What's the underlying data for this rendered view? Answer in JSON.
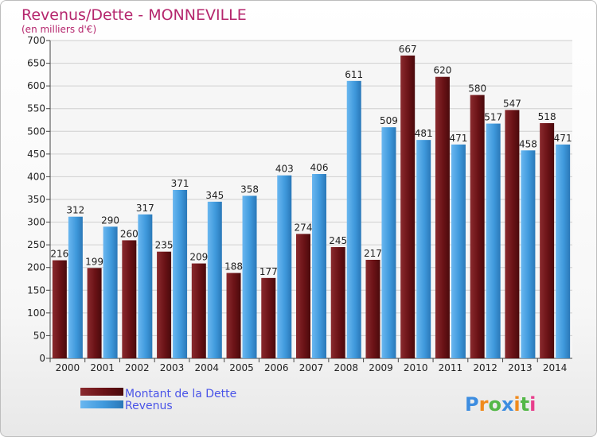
{
  "chart_data": {
    "type": "bar",
    "title": "Revenus/Dette - MONNEVILLE",
    "subtitle": "(en milliers d'€)",
    "categories": [
      "2000",
      "2001",
      "2002",
      "2003",
      "2004",
      "2005",
      "2006",
      "2007",
      "2008",
      "2009",
      "2010",
      "2011",
      "2012",
      "2013",
      "2014"
    ],
    "series": [
      {
        "name": "Montant de la Dette",
        "color": "#7a1a1e",
        "values": [
          216,
          199,
          260,
          235,
          209,
          188,
          177,
          274,
          245,
          217,
          667,
          620,
          580,
          547,
          518
        ]
      },
      {
        "name": "Revenus",
        "color": "#4aa3e6",
        "values": [
          312,
          290,
          317,
          371,
          345,
          358,
          403,
          406,
          611,
          509,
          481,
          471,
          517,
          458,
          471
        ]
      }
    ],
    "ylim": [
      0,
      700
    ],
    "ytick_step": 50,
    "grid": true,
    "legend_position": "bottom-left"
  },
  "logo": {
    "letters": [
      "P",
      "r",
      "o",
      "x",
      "i",
      "t",
      "i"
    ],
    "colors": [
      "#3d8de0",
      "#f08a1c",
      "#54b848",
      "#3d8de0",
      "#f08a1c",
      "#54b848",
      "#e83e8c"
    ]
  }
}
